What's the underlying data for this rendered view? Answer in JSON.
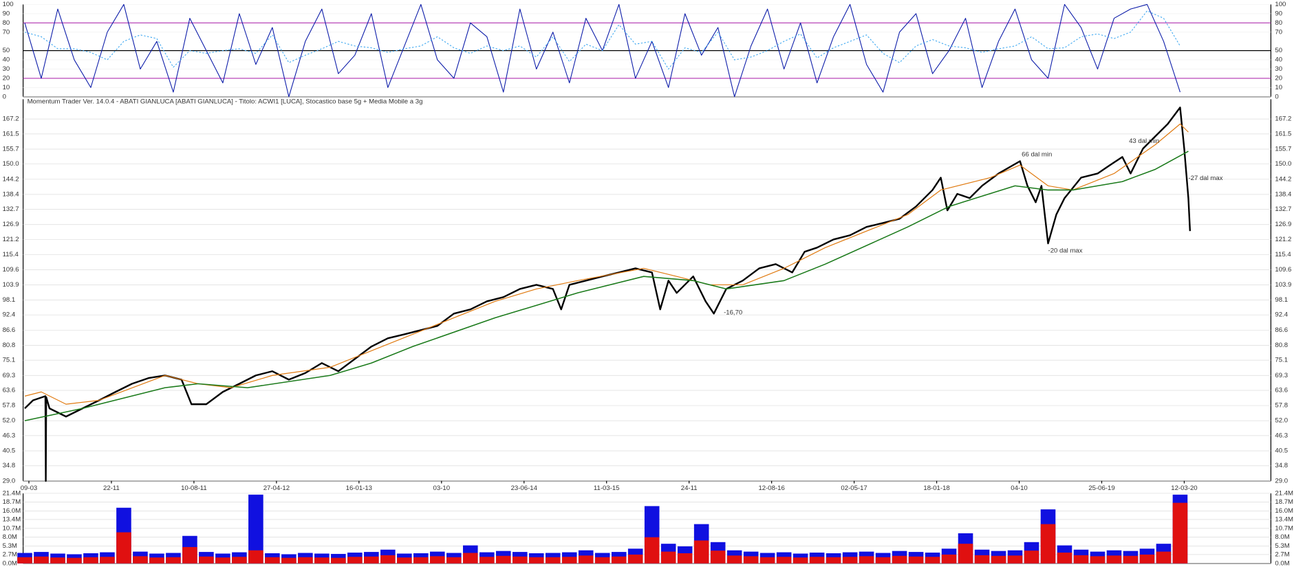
{
  "chart_data": [
    {
      "type": "line",
      "caption": "Momentum Trader   Ver. 14.0.4  -  ABATI GIANLUCA  [ABATI GIANLUCA] - Titolo: ACWI1  [LUCA],   Stocastico base 5g + Media Mobile a 3g",
      "caption_color": "#2a2ab8",
      "xlim": [
        0,
        75.5
      ],
      "ylim": [
        0,
        100
      ],
      "yticks": [
        0,
        10,
        20,
        30,
        40,
        50,
        70,
        80,
        90,
        100
      ],
      "levels": [
        80,
        50,
        20
      ],
      "level_colors": [
        "#b030b0",
        "#000000",
        "#b030b0"
      ],
      "series": [
        {
          "color": "#0a1aa8",
          "dashed": false,
          "values": [
            80,
            20,
            95,
            40,
            10,
            70,
            100,
            30,
            60,
            5,
            85,
            50,
            15,
            90,
            35,
            75,
            0,
            60,
            95,
            25,
            45,
            90,
            10,
            55,
            100,
            40,
            20,
            80,
            65,
            5,
            95,
            30,
            70,
            15,
            85,
            50,
            100,
            20,
            60,
            10,
            90,
            45,
            75,
            0,
            55,
            95,
            30,
            80,
            15,
            65,
            100,
            35,
            5,
            70,
            90,
            25,
            50,
            85,
            10,
            60,
            95,
            40,
            20,
            100,
            75,
            30,
            85,
            95,
            100,
            60,
            5
          ]
        },
        {
          "color": "#3aa6f0",
          "dashed": true,
          "values": [
            70,
            65,
            52,
            52,
            48,
            40,
            60,
            67,
            63,
            32,
            50,
            47,
            50,
            52,
            47,
            67,
            37,
            45,
            52,
            60,
            55,
            53,
            48,
            52,
            55,
            65,
            53,
            47,
            55,
            50,
            55,
            43,
            65,
            38,
            57,
            50,
            78,
            57,
            60,
            30,
            53,
            48,
            70,
            40,
            43,
            50,
            60,
            68,
            42,
            53,
            60,
            67,
            47,
            37,
            55,
            62,
            55,
            53,
            48,
            52,
            55,
            65,
            52,
            53,
            65,
            68,
            63,
            70,
            93,
            85,
            55
          ]
        }
      ]
    },
    {
      "type": "line",
      "xlim": [
        0,
        151
      ],
      "ylim": [
        29.0,
        171.6
      ],
      "grid": true,
      "yticks": [
        {
          "value": 29.0,
          "label": "29.0"
        },
        {
          "value": 34.8,
          "label": "34.8"
        },
        {
          "value": 40.5,
          "label": "40.5"
        },
        {
          "value": 46.3,
          "label": "46.3"
        },
        {
          "value": 52.0,
          "label": "52.0"
        },
        {
          "value": 57.8,
          "label": "57.8"
        },
        {
          "value": 63.6,
          "label": "63.6"
        },
        {
          "value": 69.3,
          "label": "69.3"
        },
        {
          "value": 75.1,
          "label": "75.1"
        },
        {
          "value": 80.8,
          "label": "80.8"
        },
        {
          "value": 86.6,
          "label": "86.6"
        },
        {
          "value": 92.4,
          "label": "92.4"
        },
        {
          "value": 98.1,
          "label": "98.1"
        },
        {
          "value": 103.9,
          "label": "103.9"
        },
        {
          "value": 109.6,
          "label": "109.6"
        },
        {
          "value": 115.4,
          "label": "115.4"
        },
        {
          "value": 121.2,
          "label": "121.2"
        },
        {
          "value": 126.9,
          "label": "126.9"
        },
        {
          "value": 132.7,
          "label": "132.7"
        },
        {
          "value": 138.4,
          "label": "138.4"
        },
        {
          "value": 144.2,
          "label": "144.2"
        },
        {
          "value": 150.0,
          "label": "150.0"
        },
        {
          "value": 155.7,
          "label": "155.7"
        },
        {
          "value": 161.5,
          "label": "161.5"
        },
        {
          "value": 167.2,
          "label": "167.2"
        }
      ],
      "xticks": [
        {
          "value": 0.5,
          "label": "09-03"
        },
        {
          "value": 10.5,
          "label": "22-11"
        },
        {
          "value": 20.5,
          "label": "10-08-11"
        },
        {
          "value": 30.5,
          "label": "27-04-12"
        },
        {
          "value": 40.5,
          "label": "16-01-13"
        },
        {
          "value": 50.5,
          "label": "03-10"
        },
        {
          "value": 60.5,
          "label": "23-06-14"
        },
        {
          "value": 70.5,
          "label": "11-03-15"
        },
        {
          "value": 80.5,
          "label": "24-11"
        },
        {
          "value": 90.5,
          "label": "12-08-16"
        },
        {
          "value": 100.5,
          "label": "02-05-17"
        },
        {
          "value": 110.5,
          "label": "18-01-18"
        },
        {
          "value": 120.5,
          "label": "04-10"
        },
        {
          "value": 130.5,
          "label": "25-06-19"
        },
        {
          "value": 140.5,
          "label": "12-03-20"
        }
      ],
      "xtick_colors": [
        "#000000",
        "#000000",
        "#d02020",
        "#d02020",
        "#d02020",
        "#000000",
        "#d02020",
        "#d02020",
        "#000000",
        "#d02020",
        "#d02020",
        "#d02020",
        "#000000",
        "#d02020",
        "#d02020"
      ],
      "annotations": [
        "66 dal min",
        "43 dal min",
        "-27 dal max",
        "-20 dal max",
        "-16,70"
      ],
      "annotation_color": "#d02020",
      "series": [
        {
          "color": "#000000",
          "width": 2,
          "x": [
            0,
            1,
            2.5,
            2.55,
            2.6,
            3,
            5,
            7,
            9,
            11,
            13,
            15,
            17,
            19,
            20.2,
            22,
            24,
            26,
            28,
            30,
            32,
            34,
            36,
            38,
            40,
            42,
            44,
            46,
            48,
            50,
            52,
            54,
            56,
            58,
            60,
            62,
            64,
            65,
            66,
            68,
            70,
            72,
            74,
            76,
            77,
            78,
            79,
            81,
            82.5,
            83.5,
            85,
            87,
            89,
            91,
            93,
            94.5,
            96,
            98,
            100,
            102,
            104,
            106,
            108,
            110,
            111,
            111.8,
            113,
            114.5,
            116,
            118,
            120.6,
            121.5,
            122.5,
            123.2,
            124,
            125,
            126,
            128,
            130,
            131.5,
            133,
            134,
            135.5,
            137,
            138.5,
            140,
            140.5,
            141,
            141.2
          ],
          "values": [
            56.7,
            59.8,
            61.4,
            29.0,
            61.0,
            56.7,
            53.6,
            56.7,
            59.8,
            63.0,
            66.1,
            68.3,
            69.3,
            67.7,
            58.3,
            58.3,
            63.0,
            66.1,
            69.3,
            70.9,
            67.7,
            70.2,
            74.0,
            70.9,
            75.6,
            80.3,
            83.5,
            85.0,
            86.6,
            88.2,
            92.9,
            94.5,
            97.6,
            99.2,
            102.3,
            103.9,
            102.3,
            94.5,
            103.9,
            105.5,
            107.1,
            108.6,
            110.2,
            108.6,
            94.5,
            105.5,
            100.8,
            107.1,
            97.6,
            92.9,
            102.3,
            105.5,
            110.2,
            111.8,
            108.6,
            116.5,
            118.1,
            121.2,
            122.8,
            126.0,
            127.5,
            129.1,
            133.8,
            140.1,
            144.8,
            132.3,
            138.6,
            137.0,
            141.7,
            146.4,
            151.1,
            141.7,
            135.4,
            141.7,
            119.7,
            130.7,
            137.0,
            144.8,
            146.4,
            149.6,
            152.7,
            146.4,
            155.9,
            160.6,
            165.3,
            171.6,
            155.9,
            137.0,
            124.4
          ]
        },
        {
          "color": "#e07a10",
          "width": 1,
          "x": [
            0,
            2,
            5,
            9,
            17,
            21,
            25,
            30,
            37,
            42,
            47,
            57,
            62,
            67,
            75,
            79,
            83,
            87,
            92,
            97,
            107,
            111,
            117,
            120.6,
            124,
            127,
            132,
            137,
            140,
            141
          ],
          "values": [
            61.4,
            63.0,
            58.3,
            59.8,
            69.3,
            66.1,
            64.6,
            69.3,
            72.4,
            78.7,
            85.0,
            97.6,
            102.3,
            105.5,
            110.2,
            107.1,
            103.9,
            103.9,
            110.2,
            118.1,
            130.7,
            140.1,
            144.8,
            149.6,
            141.7,
            140.1,
            146.4,
            157.4,
            165.3,
            162.2
          ]
        },
        {
          "color": "#1a7a1a",
          "width": 1.3,
          "x": [
            0,
            7,
            17,
            21,
            27,
            37,
            42,
            47,
            57,
            67,
            75,
            81,
            85,
            92,
            97,
            107,
            112,
            120,
            124,
            127,
            133,
            137,
            141
          ],
          "values": [
            52.0,
            56.7,
            64.6,
            66.1,
            64.6,
            69.3,
            74.0,
            80.3,
            91.3,
            100.8,
            107.1,
            105.5,
            102.3,
            105.5,
            111.8,
            126.0,
            133.8,
            141.7,
            140.1,
            140.1,
            143.3,
            148.0,
            154.9
          ]
        }
      ]
    },
    {
      "type": "bar",
      "xlim": [
        0,
        75.5
      ],
      "ylim": [
        0,
        21.4
      ],
      "yticks": [
        {
          "value": 0,
          "label": "0.0M"
        },
        {
          "value": 2.7,
          "label": "2.7M"
        },
        {
          "value": 5.3,
          "label": "5.3M"
        },
        {
          "value": 8.0,
          "label": "8.0M"
        },
        {
          "value": 10.7,
          "label": "10.7M"
        },
        {
          "value": 13.4,
          "label": "13.4M"
        },
        {
          "value": 16.0,
          "label": "16.0M"
        },
        {
          "value": 18.7,
          "label": "18.7M"
        },
        {
          "value": 21.4,
          "label": "21.4M"
        }
      ],
      "series": [
        {
          "color": "#1010e0",
          "values": [
            3.2,
            3.5,
            3.0,
            2.8,
            3.1,
            3.4,
            17.0,
            3.6,
            3.0,
            3.2,
            8.4,
            3.5,
            3.0,
            3.4,
            21.0,
            3.1,
            2.8,
            3.2,
            3.0,
            2.9,
            3.3,
            3.5,
            4.2,
            3.0,
            3.1,
            3.6,
            3.2,
            5.5,
            3.4,
            3.8,
            3.5,
            3.1,
            3.2,
            3.4,
            4.0,
            3.2,
            3.5,
            4.5,
            17.5,
            6.0,
            5.2,
            12.0,
            6.5,
            4.0,
            3.6,
            3.2,
            3.4,
            3.0,
            3.3,
            3.1,
            3.4,
            3.6,
            3.2,
            3.8,
            3.5,
            3.3,
            4.5,
            9.2,
            4.2,
            3.8,
            4.0,
            6.5,
            16.5,
            5.5,
            4.2,
            3.6,
            4.0,
            3.8,
            4.5,
            6.0,
            21.0
          ]
        },
        {
          "color": "#e01010",
          "values": [
            1.9,
            2.1,
            1.8,
            1.7,
            1.9,
            2.0,
            9.5,
            2.2,
            1.8,
            1.9,
            5.0,
            2.1,
            1.8,
            2.0,
            4.0,
            1.9,
            1.7,
            1.9,
            1.8,
            1.7,
            2.0,
            2.1,
            2.5,
            1.8,
            1.9,
            2.2,
            1.9,
            3.2,
            2.0,
            2.3,
            2.1,
            1.9,
            1.9,
            2.0,
            2.4,
            1.9,
            2.1,
            2.7,
            8.0,
            3.6,
            3.1,
            7.0,
            3.9,
            2.4,
            2.2,
            1.9,
            2.0,
            1.8,
            2.0,
            1.9,
            2.0,
            2.2,
            1.9,
            2.3,
            2.1,
            2.0,
            2.7,
            6.0,
            2.5,
            2.3,
            2.4,
            3.9,
            12.0,
            3.3,
            2.5,
            2.2,
            2.4,
            2.3,
            2.7,
            3.6,
            18.5
          ]
        }
      ]
    }
  ]
}
